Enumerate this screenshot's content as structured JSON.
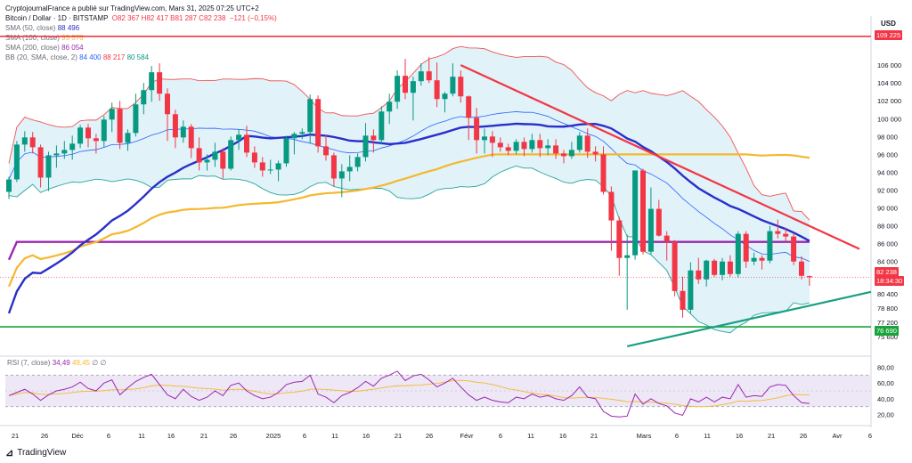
{
  "header": {
    "attribution": "CryptojournalFrance a publié sur TradingView.com, Mars 31, 2025 07:25 UTC+2",
    "symbol": "Bitcoin / Dollar · 1D · BITSTAMP",
    "ohlc": "O82 367  H82 417  B81 287  C82 238",
    "change": "−121 (−0,15%)",
    "sma50_label": "SMA (50, close)",
    "sma50_value": "88 496",
    "sma100_label": "SMA (100, close)",
    "sma100_value": "93 576",
    "sma200_label": "SMA (200, close)",
    "sma200_value": "86 054",
    "bb_label": "BB (20, SMA, close, 2)",
    "bb_basis": "84 400",
    "bb_upper": "88 217",
    "bb_lower": "80 584",
    "rsi_label": "RSI (7, close)",
    "rsi_value": "34,49",
    "rsi_ma": "49,45",
    "rsi_tail": "∅  ∅"
  },
  "price_axis": {
    "currency": "USD",
    "ticks": [
      "106 000",
      "104 000",
      "102 000",
      "100 000",
      "98 000",
      "96 000",
      "94 000",
      "92 000",
      "90 000",
      "88 000",
      "86 000",
      "84 000",
      "80 400",
      "78 800",
      "77 200",
      "75 600"
    ],
    "resistance_tag": "109 225",
    "current_price_tag": "82 238",
    "countdown_tag": "18:34:30",
    "support_tag": "76 690"
  },
  "rsi_axis": {
    "ticks": [
      "80,00",
      "60,00",
      "40,00",
      "20,00"
    ]
  },
  "time_axis": {
    "ticks": [
      "21",
      "26",
      "Déc",
      "6",
      "11",
      "16",
      "21",
      "26",
      "2025",
      "6",
      "11",
      "16",
      "21",
      "26",
      "Févr",
      "6",
      "11",
      "16",
      "21",
      "Mars",
      "6",
      "11",
      "16",
      "21",
      "26",
      "Avr",
      "6"
    ]
  },
  "brand": "TradingView",
  "colors": {
    "up": "#089981",
    "down": "#f23645",
    "sma50": "#2a2fc9",
    "sma100": "#f5b82e",
    "sma200": "#9c27b0",
    "bb_band": "#d4ecf7",
    "bb_upper": "#ef5350",
    "bb_lower": "#26a69a",
    "bb_basis": "#2962ff",
    "resistance": "#f23645",
    "support": "#1aa33b",
    "trend_down": "#f23645",
    "trend_up": "#18a081",
    "rsi_line": "#9c27b0",
    "rsi_band": "#ede7f6"
  },
  "chart_data": {
    "type": "candlestick",
    "title": "Bitcoin / Dollar · 1D · BITSTAMP",
    "ylim": [
      73800,
      110500
    ],
    "horizontal_levels": [
      109225,
      76690
    ],
    "candles": [
      [
        91800,
        93500,
        91000,
        93200
      ],
      [
        93200,
        97500,
        92900,
        97100
      ],
      [
        97100,
        98600,
        96300,
        97900
      ],
      [
        97900,
        98500,
        96100,
        96800
      ],
      [
        96800,
        97100,
        92300,
        93400
      ],
      [
        93400,
        96300,
        91900,
        95900
      ],
      [
        95900,
        97000,
        94500,
        96100
      ],
      [
        96100,
        97500,
        95500,
        96500
      ],
      [
        96500,
        98100,
        95400,
        97200
      ],
      [
        97200,
        99300,
        96700,
        99000
      ],
      [
        99000,
        99400,
        96800,
        97800
      ],
      [
        97800,
        98300,
        96100,
        97500
      ],
      [
        97500,
        100300,
        96800,
        99900
      ],
      [
        99900,
        101800,
        98500,
        101100
      ],
      [
        101100,
        102000,
        96600,
        97300
      ],
      [
        97300,
        98800,
        96400,
        98400
      ],
      [
        98400,
        102800,
        98000,
        101600
      ],
      [
        101600,
        104000,
        100500,
        103200
      ],
      [
        103200,
        105900,
        101900,
        105200
      ],
      [
        105200,
        106200,
        102000,
        102800
      ],
      [
        102800,
        103400,
        97500,
        100500
      ],
      [
        100500,
        101000,
        96700,
        97900
      ],
      [
        97900,
        99800,
        97300,
        99100
      ],
      [
        99100,
        99400,
        95600,
        96700
      ],
      [
        96700,
        97900,
        94200,
        95100
      ],
      [
        95100,
        96000,
        94200,
        95400
      ],
      [
        95400,
        97300,
        94600,
        96300
      ],
      [
        96300,
        96700,
        93300,
        94400
      ],
      [
        94400,
        98000,
        94200,
        97600
      ],
      [
        97600,
        98800,
        96500,
        98200
      ],
      [
        98200,
        99200,
        95700,
        96200
      ],
      [
        96200,
        96900,
        94500,
        95100
      ],
      [
        95100,
        95700,
        93500,
        94200
      ],
      [
        94200,
        95400,
        93800,
        94300
      ],
      [
        94300,
        95300,
        93000,
        95000
      ],
      [
        95000,
        98100,
        94600,
        97800
      ],
      [
        97800,
        98500,
        96000,
        98300
      ],
      [
        98300,
        98900,
        97700,
        98500
      ],
      [
        98500,
        102700,
        97200,
        102200
      ],
      [
        102200,
        102600,
        96200,
        96900
      ],
      [
        96900,
        98200,
        95300,
        95900
      ],
      [
        95900,
        96200,
        92400,
        93300
      ],
      [
        93300,
        94900,
        91200,
        94100
      ],
      [
        94100,
        95900,
        93000,
        94600
      ],
      [
        94600,
        96100,
        94100,
        95700
      ],
      [
        95700,
        99500,
        95200,
        98100
      ],
      [
        98100,
        98800,
        96200,
        97600
      ],
      [
        97600,
        101400,
        97100,
        100800
      ],
      [
        100800,
        102800,
        99400,
        101900
      ],
      [
        101900,
        105400,
        101100,
        104800
      ],
      [
        104800,
        106700,
        102200,
        102900
      ],
      [
        102900,
        104700,
        99800,
        104200
      ],
      [
        104200,
        106200,
        103700,
        105300
      ],
      [
        105300,
        106900,
        104000,
        104300
      ],
      [
        104300,
        106300,
        101300,
        102200
      ],
      [
        102200,
        103000,
        100700,
        102800
      ],
      [
        102800,
        106200,
        102500,
        104700
      ],
      [
        104700,
        105400,
        101800,
        102500
      ],
      [
        102500,
        102600,
        97600,
        100100
      ],
      [
        100100,
        101200,
        96100,
        97600
      ],
      [
        97600,
        98900,
        96100,
        98000
      ],
      [
        98000,
        98600,
        95700,
        97300
      ],
      [
        97300,
        97900,
        96300,
        96800
      ],
      [
        96800,
        97200,
        95900,
        96400
      ],
      [
        96400,
        97700,
        96000,
        97400
      ],
      [
        97400,
        97900,
        95800,
        96600
      ],
      [
        96600,
        98300,
        96200,
        97600
      ],
      [
        97600,
        98300,
        95700,
        96700
      ],
      [
        96700,
        97700,
        95900,
        97000
      ],
      [
        97000,
        97700,
        95500,
        96100
      ],
      [
        96100,
        96500,
        95000,
        95800
      ],
      [
        95800,
        97400,
        95500,
        96500
      ],
      [
        96500,
        98500,
        96200,
        98100
      ],
      [
        98100,
        98900,
        95600,
        96300
      ],
      [
        96300,
        96900,
        95200,
        96000
      ],
      [
        96000,
        96900,
        91500,
        91800
      ],
      [
        91800,
        92400,
        85200,
        88600
      ],
      [
        88600,
        89000,
        82400,
        84400
      ],
      [
        84400,
        87000,
        78600,
        84700
      ],
      [
        84700,
        94200,
        84200,
        94200
      ],
      [
        94200,
        94400,
        84800,
        85100
      ],
      [
        85100,
        92300,
        84800,
        89900
      ],
      [
        89900,
        90900,
        86800,
        86900
      ],
      [
        86900,
        87400,
        84100,
        86200
      ],
      [
        86200,
        86400,
        80100,
        80700
      ],
      [
        80700,
        82300,
        77700,
        78600
      ],
      [
        78600,
        83900,
        78200,
        83000
      ],
      [
        83000,
        84400,
        81500,
        82000
      ],
      [
        82000,
        84200,
        81200,
        84100
      ],
      [
        84100,
        84300,
        82300,
        82500
      ],
      [
        82500,
        84400,
        81900,
        84000
      ],
      [
        84000,
        84700,
        82300,
        82600
      ],
      [
        82600,
        87400,
        82200,
        87100
      ],
      [
        87100,
        87400,
        83300,
        84000
      ],
      [
        84000,
        85000,
        83600,
        84400
      ],
      [
        84400,
        84700,
        83100,
        84100
      ],
      [
        84100,
        88000,
        83800,
        87400
      ],
      [
        87400,
        88700,
        86600,
        87100
      ],
      [
        87100,
        87800,
        86200,
        86800
      ],
      [
        86800,
        87200,
        83600,
        84000
      ],
      [
        84000,
        84600,
        82000,
        82400
      ],
      [
        82367,
        82417,
        81287,
        82238
      ]
    ],
    "rsi": [
      44,
      48,
      52,
      46,
      38,
      45,
      50,
      52,
      55,
      61,
      53,
      50,
      60,
      64,
      45,
      54,
      62,
      67,
      71,
      58,
      45,
      40,
      52,
      43,
      38,
      42,
      50,
      44,
      57,
      60,
      50,
      44,
      40,
      42,
      48,
      58,
      61,
      62,
      70,
      46,
      42,
      35,
      44,
      48,
      54,
      62,
      56,
      66,
      70,
      75,
      63,
      69,
      71,
      64,
      55,
      60,
      66,
      55,
      45,
      38,
      42,
      38,
      36,
      35,
      42,
      40,
      46,
      42,
      44,
      40,
      38,
      44,
      55,
      42,
      40,
      24,
      18,
      17,
      18,
      46,
      33,
      40,
      34,
      31,
      22,
      19,
      40,
      36,
      42,
      36,
      42,
      40,
      58,
      42,
      44,
      43,
      55,
      58,
      57,
      44,
      35,
      34
    ]
  }
}
